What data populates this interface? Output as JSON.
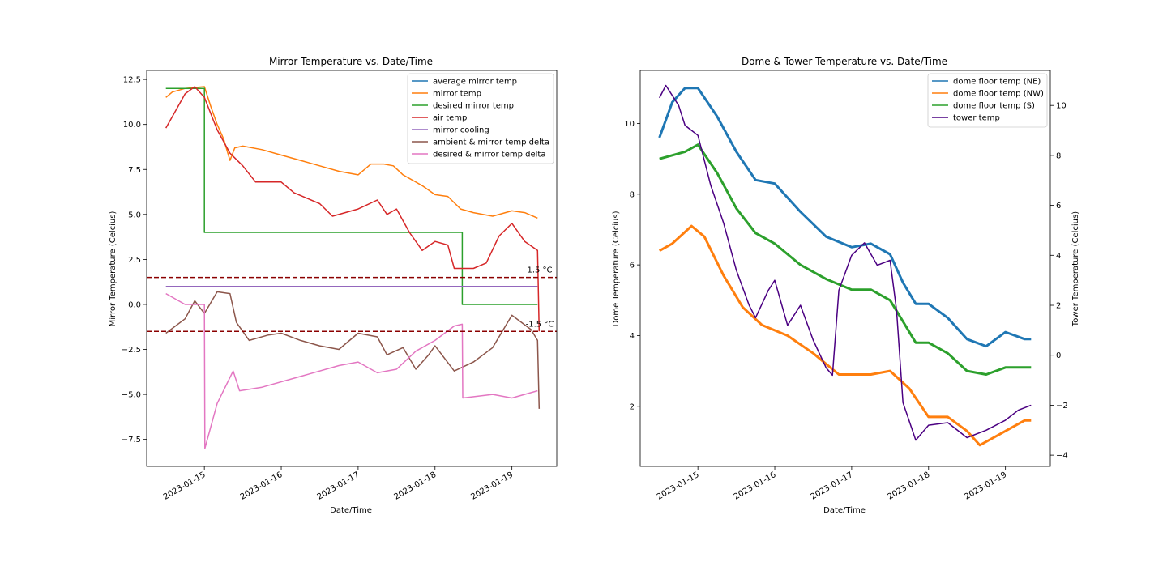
{
  "chart_data": [
    {
      "type": "line",
      "title": "Mirror Temperature vs. Date/Time",
      "xlabel": "Date/Time",
      "ylabel": "Mirror Temperature (Celcius)",
      "xlim": [
        "2023-01-14T06:00",
        "2023-01-19T14:00"
      ],
      "ylim": [
        -9.0,
        13.0
      ],
      "x_ticks": [
        "2023-01-15",
        "2023-01-16",
        "2023-01-17",
        "2023-01-18",
        "2023-01-19"
      ],
      "y_ticks": [
        -7.5,
        -5.0,
        -2.5,
        0.0,
        2.5,
        5.0,
        7.5,
        10.0,
        12.5
      ],
      "y_tick_labels": [
        "−7.5",
        "−5.0",
        "−2.5",
        "0.0",
        "2.5",
        "5.0",
        "7.5",
        "10.0",
        "12.5"
      ],
      "grid": false,
      "legend_position": "upper-right",
      "series": [
        {
          "name": "average mirror temp",
          "color": "#1f77b4",
          "x": [],
          "y": []
        },
        {
          "name": "mirror temp",
          "color": "#ff7f0e",
          "x": [
            "2023-01-14T12:00",
            "2023-01-14T14:00",
            "2023-01-14T18:00",
            "2023-01-15T00:00",
            "2023-01-15T02:00",
            "2023-01-15T04:00",
            "2023-01-15T06:00",
            "2023-01-15T08:00",
            "2023-01-15T09:30",
            "2023-01-15T12:00",
            "2023-01-15T18:00",
            "2023-01-16T00:00",
            "2023-01-16T06:00",
            "2023-01-16T12:00",
            "2023-01-16T18:00",
            "2023-01-17T00:00",
            "2023-01-17T04:00",
            "2023-01-17T08:00",
            "2023-01-17T11:00",
            "2023-01-17T14:00",
            "2023-01-17T20:00",
            "2023-01-18T00:00",
            "2023-01-18T04:00",
            "2023-01-18T08:00",
            "2023-01-18T12:00",
            "2023-01-18T18:00",
            "2023-01-19T00:00",
            "2023-01-19T04:00",
            "2023-01-19T08:00"
          ],
          "y": [
            11.5,
            11.8,
            12.0,
            12.1,
            11.0,
            10.0,
            9.2,
            8.0,
            8.7,
            8.8,
            8.6,
            8.3,
            8.0,
            7.7,
            7.4,
            7.2,
            7.8,
            7.8,
            7.7,
            7.2,
            6.6,
            6.1,
            6.0,
            5.3,
            5.1,
            4.9,
            5.2,
            5.1,
            4.8
          ]
        },
        {
          "name": "desired mirror temp",
          "color": "#2ca02c",
          "x": [
            "2023-01-14T12:00",
            "2023-01-15T00:00",
            "2023-01-15T00:01",
            "2023-01-18T08:30",
            "2023-01-18T08:31",
            "2023-01-19T08:00"
          ],
          "y": [
            12.0,
            12.0,
            4.0,
            4.0,
            0.0,
            0.0
          ]
        },
        {
          "name": "air temp",
          "color": "#d62728",
          "x": [
            "2023-01-14T12:00",
            "2023-01-14T18:00",
            "2023-01-14T21:00",
            "2023-01-15T00:00",
            "2023-01-15T04:00",
            "2023-01-15T08:00",
            "2023-01-15T12:00",
            "2023-01-15T16:00",
            "2023-01-16T00:00",
            "2023-01-16T04:00",
            "2023-01-16T12:00",
            "2023-01-16T16:00",
            "2023-01-17T00:00",
            "2023-01-17T06:00",
            "2023-01-17T09:00",
            "2023-01-17T12:00",
            "2023-01-17T16:00",
            "2023-01-17T20:00",
            "2023-01-18T00:00",
            "2023-01-18T04:00",
            "2023-01-18T06:00",
            "2023-01-18T12:00",
            "2023-01-18T16:00",
            "2023-01-18T20:00",
            "2023-01-19T00:00",
            "2023-01-19T04:00",
            "2023-01-19T08:00",
            "2023-01-19T08:30"
          ],
          "y": [
            9.8,
            11.7,
            12.1,
            11.5,
            9.7,
            8.4,
            7.7,
            6.8,
            6.8,
            6.2,
            5.6,
            4.9,
            5.3,
            5.8,
            5.0,
            5.3,
            4.0,
            3.0,
            3.5,
            3.3,
            2.0,
            2.0,
            2.3,
            3.8,
            4.5,
            3.5,
            3.0,
            -1.5
          ]
        },
        {
          "name": "mirror cooling",
          "color": "#9467bd",
          "x": [
            "2023-01-14T12:00",
            "2023-01-19T08:00"
          ],
          "y": [
            1.0,
            1.0
          ]
        },
        {
          "name": "ambient & mirror temp delta",
          "color": "#8c564b",
          "x": [
            "2023-01-14T12:00",
            "2023-01-14T18:00",
            "2023-01-14T21:00",
            "2023-01-15T00:00",
            "2023-01-15T04:00",
            "2023-01-15T08:00",
            "2023-01-15T10:00",
            "2023-01-15T14:00",
            "2023-01-15T20:00",
            "2023-01-16T00:00",
            "2023-01-16T06:00",
            "2023-01-16T12:00",
            "2023-01-16T18:00",
            "2023-01-17T00:00",
            "2023-01-17T06:00",
            "2023-01-17T09:00",
            "2023-01-17T14:00",
            "2023-01-17T18:00",
            "2023-01-17T22:00",
            "2023-01-18T00:00",
            "2023-01-18T06:00",
            "2023-01-18T12:00",
            "2023-01-18T18:00",
            "2023-01-19T00:00",
            "2023-01-19T06:00",
            "2023-01-19T08:00",
            "2023-01-19T08:30"
          ],
          "y": [
            -1.6,
            -0.8,
            0.2,
            -0.5,
            0.7,
            0.6,
            -1.0,
            -2.0,
            -1.7,
            -1.6,
            -2.0,
            -2.3,
            -2.5,
            -1.6,
            -1.8,
            -2.8,
            -2.4,
            -3.6,
            -2.8,
            -2.3,
            -3.7,
            -3.2,
            -2.4,
            -0.6,
            -1.4,
            -2.0,
            -5.8
          ]
        },
        {
          "name": "desired & mirror temp delta",
          "color": "#e377c2",
          "x": [
            "2023-01-14T12:00",
            "2023-01-14T18:00",
            "2023-01-14T21:00",
            "2023-01-15T00:00",
            "2023-01-15T00:10",
            "2023-01-15T04:00",
            "2023-01-15T09:00",
            "2023-01-15T11:00",
            "2023-01-15T18:00",
            "2023-01-16T06:00",
            "2023-01-16T18:00",
            "2023-01-17T00:00",
            "2023-01-17T06:00",
            "2023-01-17T12:00",
            "2023-01-17T18:00",
            "2023-01-18T00:00",
            "2023-01-18T06:00",
            "2023-01-18T08:30",
            "2023-01-18T08:40",
            "2023-01-18T18:00",
            "2023-01-19T00:00",
            "2023-01-19T08:00"
          ],
          "y": [
            0.6,
            0.0,
            0.0,
            0.0,
            -8.0,
            -5.5,
            -3.7,
            -4.8,
            -4.6,
            -4.0,
            -3.4,
            -3.2,
            -3.8,
            -3.6,
            -2.6,
            -2.0,
            -1.2,
            -1.1,
            -5.2,
            -5.0,
            -5.2,
            -4.8
          ]
        }
      ],
      "reference_lines": [
        {
          "y": 1.5,
          "label": "1.5 °C",
          "color": "#8b0000",
          "style": "dashed"
        },
        {
          "y": -1.5,
          "label": "-1.5 °C",
          "color": "#8b0000",
          "style": "dashed"
        }
      ]
    },
    {
      "type": "line",
      "title": "Dome & Tower Temperature vs. Date/Time",
      "xlabel": "Date/Time",
      "ylabel": "Dome Temperature (Celcius)",
      "ylabel_right": "Tower Temperature (Celcius)",
      "xlim": [
        "2023-01-14T06:00",
        "2023-01-19T14:00"
      ],
      "ylim": [
        0.3,
        11.5
      ],
      "ylim_right": [
        -4.45,
        11.4
      ],
      "x_ticks": [
        "2023-01-15",
        "2023-01-16",
        "2023-01-17",
        "2023-01-18",
        "2023-01-19"
      ],
      "y_ticks": [
        2,
        4,
        6,
        8,
        10
      ],
      "y_tick_labels": [
        "2",
        "4",
        "6",
        "8",
        "10"
      ],
      "y_ticks_right": [
        -4,
        -2,
        0,
        2,
        4,
        6,
        8,
        10
      ],
      "y_tick_labels_right": [
        "−4",
        "−2",
        "0",
        "2",
        "4",
        "6",
        "8",
        "10"
      ],
      "grid": false,
      "legend_position": "upper-right",
      "series": [
        {
          "name": "dome floor temp (NE)",
          "color": "#1f77b4",
          "axis": "left",
          "x": [
            "2023-01-14T12:00",
            "2023-01-14T16:00",
            "2023-01-14T20:00",
            "2023-01-15T00:00",
            "2023-01-15T06:00",
            "2023-01-15T12:00",
            "2023-01-15T18:00",
            "2023-01-16T00:00",
            "2023-01-16T08:00",
            "2023-01-16T16:00",
            "2023-01-17T00:00",
            "2023-01-17T06:00",
            "2023-01-17T12:00",
            "2023-01-17T16:00",
            "2023-01-17T20:00",
            "2023-01-18T00:00",
            "2023-01-18T06:00",
            "2023-01-18T12:00",
            "2023-01-18T18:00",
            "2023-01-19T00:00",
            "2023-01-19T06:00",
            "2023-01-19T08:00"
          ],
          "y": [
            9.6,
            10.6,
            11.0,
            11.0,
            10.2,
            9.2,
            8.4,
            8.3,
            7.5,
            6.8,
            6.5,
            6.6,
            6.3,
            5.5,
            4.9,
            4.9,
            4.5,
            3.9,
            3.7,
            4.1,
            3.9,
            3.9
          ]
        },
        {
          "name": "dome floor temp (NW)",
          "color": "#ff7f0e",
          "axis": "left",
          "x": [
            "2023-01-14T12:00",
            "2023-01-14T16:00",
            "2023-01-14T22:00",
            "2023-01-15T02:00",
            "2023-01-15T08:00",
            "2023-01-15T14:00",
            "2023-01-15T20:00",
            "2023-01-16T04:00",
            "2023-01-16T12:00",
            "2023-01-16T20:00",
            "2023-01-17T06:00",
            "2023-01-17T12:00",
            "2023-01-17T18:00",
            "2023-01-18T00:00",
            "2023-01-18T06:00",
            "2023-01-18T12:00",
            "2023-01-18T16:00",
            "2023-01-18T22:00",
            "2023-01-19T06:00",
            "2023-01-19T08:00"
          ],
          "y": [
            6.4,
            6.6,
            7.1,
            6.8,
            5.7,
            4.8,
            4.3,
            4.0,
            3.5,
            2.9,
            2.9,
            3.0,
            2.5,
            1.7,
            1.7,
            1.3,
            0.9,
            1.2,
            1.6,
            1.6
          ]
        },
        {
          "name": "dome floor temp (S)",
          "color": "#2ca02c",
          "axis": "left",
          "x": [
            "2023-01-14T12:00",
            "2023-01-14T20:00",
            "2023-01-15T00:00",
            "2023-01-15T06:00",
            "2023-01-15T12:00",
            "2023-01-15T18:00",
            "2023-01-16T00:00",
            "2023-01-16T08:00",
            "2023-01-16T16:00",
            "2023-01-17T00:00",
            "2023-01-17T06:00",
            "2023-01-17T12:00",
            "2023-01-17T16:00",
            "2023-01-17T20:00",
            "2023-01-18T00:00",
            "2023-01-18T06:00",
            "2023-01-18T12:00",
            "2023-01-18T18:00",
            "2023-01-19T00:00",
            "2023-01-19T08:00"
          ],
          "y": [
            9.0,
            9.2,
            9.4,
            8.6,
            7.6,
            6.9,
            6.6,
            6.0,
            5.6,
            5.3,
            5.3,
            5.0,
            4.4,
            3.8,
            3.8,
            3.5,
            3.0,
            2.9,
            3.1,
            3.1
          ]
        },
        {
          "name": "tower temp",
          "color": "#4b0082",
          "axis": "right",
          "x": [
            "2023-01-14T12:00",
            "2023-01-14T14:00",
            "2023-01-14T18:00",
            "2023-01-14T20:00",
            "2023-01-15T00:00",
            "2023-01-15T04:00",
            "2023-01-15T08:00",
            "2023-01-15T12:00",
            "2023-01-15T16:00",
            "2023-01-15T18:00",
            "2023-01-15T22:00",
            "2023-01-16T00:00",
            "2023-01-16T04:00",
            "2023-01-16T08:00",
            "2023-01-16T12:00",
            "2023-01-16T16:00",
            "2023-01-16T18:00",
            "2023-01-16T20:00",
            "2023-01-17T00:00",
            "2023-01-17T04:00",
            "2023-01-17T08:00",
            "2023-01-17T12:00",
            "2023-01-17T14:00",
            "2023-01-17T16:00",
            "2023-01-17T20:00",
            "2023-01-18T00:00",
            "2023-01-18T06:00",
            "2023-01-18T12:00",
            "2023-01-18T18:00",
            "2023-01-19T00:00",
            "2023-01-19T04:00",
            "2023-01-19T08:00"
          ],
          "y": [
            10.3,
            10.8,
            10.0,
            9.2,
            8.8,
            6.8,
            5.3,
            3.4,
            2.0,
            1.5,
            2.6,
            3.0,
            1.2,
            2.0,
            0.6,
            -0.5,
            -0.8,
            2.6,
            4.0,
            4.5,
            3.6,
            3.8,
            1.8,
            -1.9,
            -3.4,
            -2.8,
            -2.7,
            -3.3,
            -3.0,
            -2.6,
            -2.2,
            -2.0
          ]
        }
      ]
    }
  ]
}
